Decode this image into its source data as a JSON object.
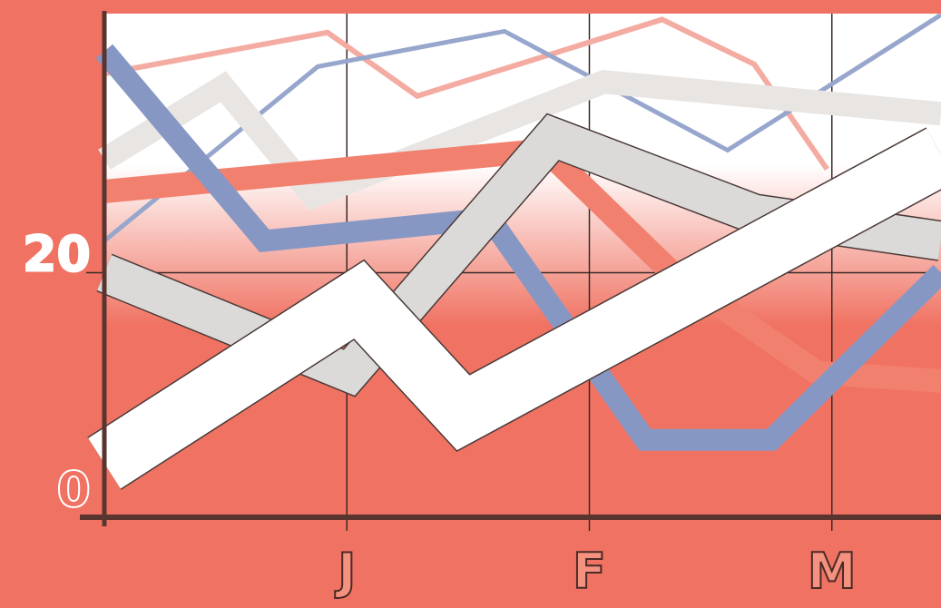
{
  "chart_data": {
    "type": "line",
    "xlim": [
      0,
      3.45
    ],
    "ylim": [
      0,
      42
    ],
    "xticks": [
      {
        "value": 1,
        "label": "J"
      },
      {
        "value": 2,
        "label": "F"
      },
      {
        "value": 3,
        "label": "M"
      }
    ],
    "yticks": [
      0,
      20
    ],
    "grid": true,
    "series": [
      {
        "color": "#f4aca2",
        "line_width": 6,
        "x": [
          0,
          0.92,
          1.29,
          2.3,
          2.68,
          2.98
        ],
        "values": [
          36.9,
          40.4,
          35,
          41.5,
          37.7,
          28.8
        ]
      },
      {
        "color": "#97a6cc",
        "line_width": 5,
        "x": [
          0,
          0.88,
          1.65,
          2.57,
          3.45
        ],
        "values": [
          22.7,
          37.5,
          40.5,
          30.4,
          41.9
        ]
      },
      {
        "color": "#e8e5e3",
        "line_width": 26,
        "x": [
          0,
          0.49,
          0.86,
          2.06,
          3.45
        ],
        "values": [
          29.6,
          35.8,
          26.5,
          36.2,
          33.5
        ]
      },
      {
        "color": "#f2806e",
        "line_width": 26,
        "x": [
          0,
          1.82,
          2.34,
          2.94,
          3.45
        ],
        "values": [
          26.9,
          30.4,
          20,
          11.5,
          10.8
        ]
      },
      {
        "color": "#8797c4",
        "line_width": 24,
        "x": [
          0,
          0.66,
          1.59,
          2.23,
          2.75,
          3.45
        ],
        "values": [
          38.8,
          22.7,
          24.6,
          5.8,
          5.8,
          20
        ]
      },
      {
        "color": "#dcdad8",
        "line_width": 42,
        "x": [
          0,
          1.01,
          1.85,
          2.68,
          3.45
        ],
        "values": [
          20,
          11.5,
          31.5,
          25,
          22.7
        ]
      },
      {
        "color": "#ffffff",
        "line_width": 66,
        "x": [
          0,
          1.05,
          1.48,
          3.45
        ],
        "values": [
          3.8,
          17.7,
          8.1,
          30.0
        ]
      }
    ]
  }
}
